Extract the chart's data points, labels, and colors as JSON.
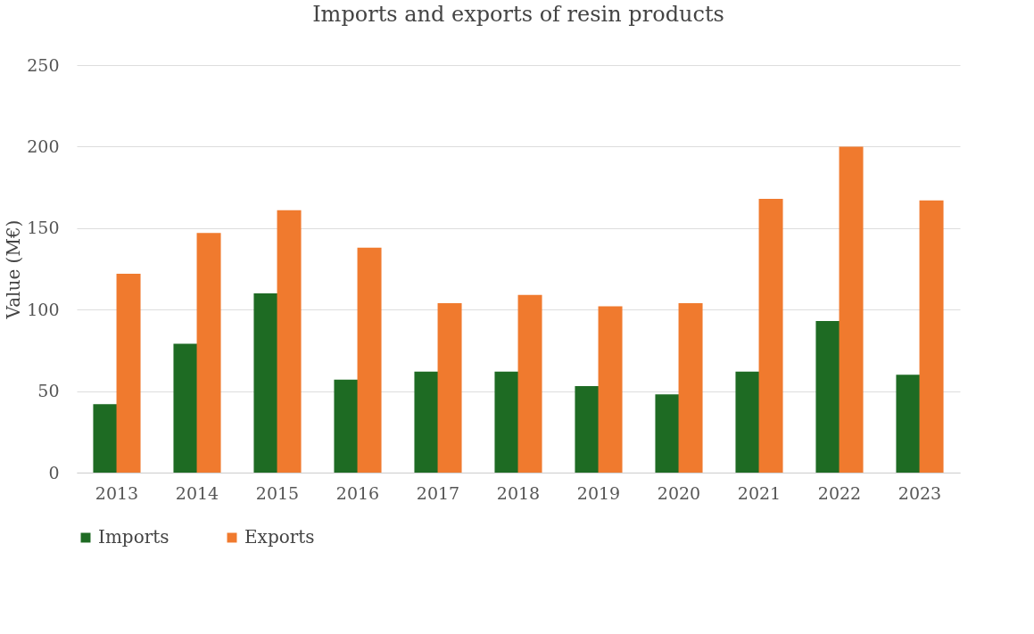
{
  "chart_data": {
    "type": "bar",
    "title": "Imports and exports of resin products",
    "ylabel": "Value (M€)",
    "categories": [
      "2013",
      "2014",
      "2015",
      "2016",
      "2017",
      "2018",
      "2019",
      "2020",
      "2021",
      "2022",
      "2023"
    ],
    "series": [
      {
        "name": "Imports",
        "color": "#1e6b23",
        "values": [
          42,
          79,
          110,
          57,
          62,
          62,
          53,
          48,
          62,
          93,
          60
        ]
      },
      {
        "name": "Exports",
        "color": "#f07a2e",
        "values": [
          122,
          147,
          161,
          138,
          104,
          109,
          102,
          104,
          168,
          200,
          167
        ]
      }
    ],
    "ylim": [
      0,
      250
    ],
    "yticks": [
      0,
      50,
      100,
      150,
      200,
      250
    ],
    "grid": "y",
    "legend": "bottom"
  }
}
